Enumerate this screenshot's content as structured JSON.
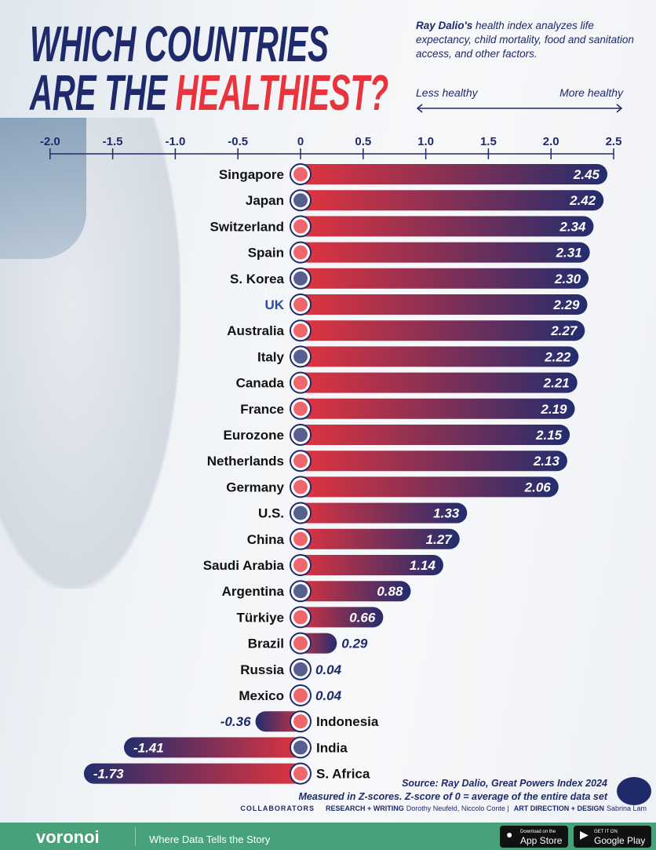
{
  "header": {
    "title_line1": "WHICH COUNTRIES",
    "title_line2_a": "ARE THE ",
    "title_line2_b": "HEALTHIEST?",
    "desc_bold": "Ray Dalio's",
    "desc_rest": " health index analyzes life expectancy, child mortality, food and sanitation access, and other factors.",
    "less": "Less healthy",
    "more": "More healthy"
  },
  "chart_data": {
    "type": "bar",
    "orientation": "horizontal",
    "categories": [
      "Singapore",
      "Japan",
      "Switzerland",
      "Spain",
      "S. Korea",
      "UK",
      "Australia",
      "Italy",
      "Canada",
      "France",
      "Eurozone",
      "Netherlands",
      "Germany",
      "U.S.",
      "China",
      "Saudi Arabia",
      "Argentina",
      "Türkiye",
      "Brazil",
      "Russia",
      "Mexico",
      "Indonesia",
      "India",
      "S. Africa"
    ],
    "values": [
      2.45,
      2.42,
      2.34,
      2.31,
      2.3,
      2.29,
      2.27,
      2.22,
      2.21,
      2.19,
      2.15,
      2.13,
      2.06,
      1.33,
      1.27,
      1.14,
      0.88,
      0.66,
      0.29,
      0.04,
      0.04,
      -0.36,
      -1.41,
      -1.73
    ],
    "labels": [
      "2.45",
      "2.42",
      "2.34",
      "2.31",
      "2.30",
      "2.29",
      "2.27",
      "2.22",
      "2.21",
      "2.19",
      "2.15",
      "2.13",
      "2.06",
      "1.33",
      "1.27",
      "1.14",
      "0.88",
      "0.66",
      "0.29",
      "0.04",
      "0.04",
      "-0.36",
      "-1.41",
      "-1.73"
    ],
    "xlim": [
      -2.0,
      2.5
    ],
    "xticks": [
      "-2.0",
      "-1.5",
      "-1.0",
      "-0.5",
      "0",
      "0.5",
      "1.0",
      "1.5",
      "2.0",
      "2.5"
    ],
    "xtick_values": [
      -2.0,
      -1.5,
      -1.0,
      -0.5,
      0,
      0.5,
      1.0,
      1.5,
      2.0,
      2.5
    ],
    "colors": {
      "bar_near_zero": "#e8343c",
      "bar_end": "#232d6e",
      "text": "#1f2a6b"
    }
  },
  "source": {
    "line1": "Source: Ray Dalio, Great Powers Index 2024",
    "line2": "Measured in Z-scores. Z-score of 0 = average of the entire data set"
  },
  "collab": {
    "label": "COLLABORATORS",
    "rw": "RESEARCH + WRITING",
    "rw_names": "Dorothy Neufeld, Niccolo Conte",
    "sep": "|",
    "ad": "ART DIRECTION + DESIGN",
    "ad_names": "Sabrina Lam"
  },
  "footer": {
    "logo": "voronoi",
    "tagline": "Where Data Tells the Story",
    "app_small": "Download on the",
    "app": "App Store",
    "gp_small": "GET IT ON",
    "gp": "Google Play"
  }
}
